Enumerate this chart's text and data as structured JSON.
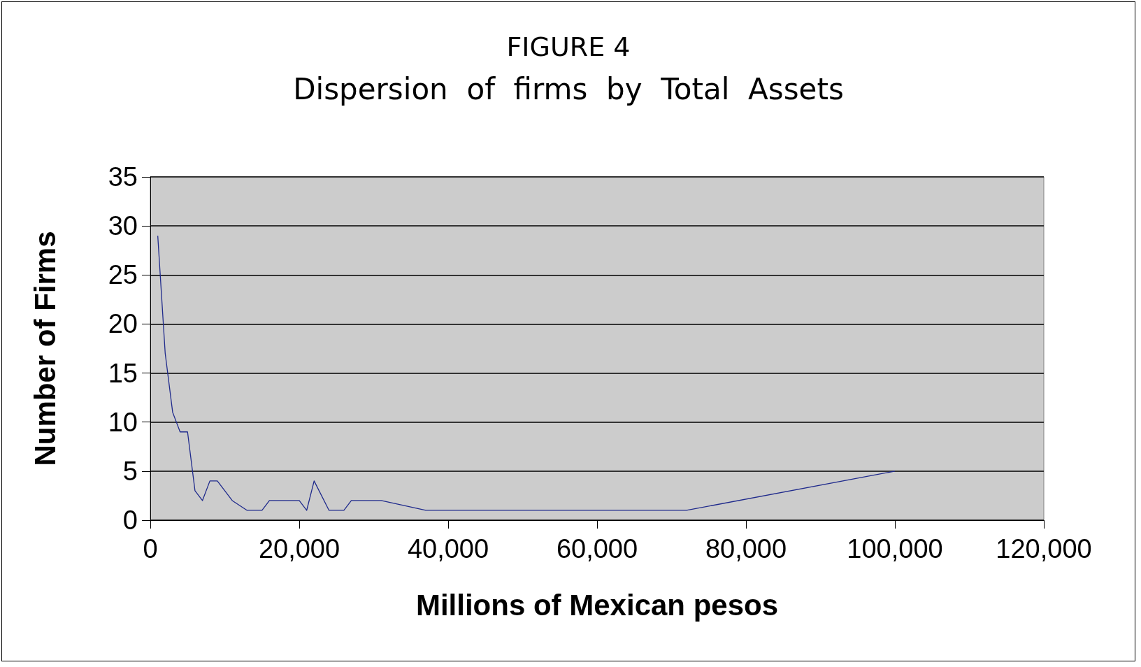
{
  "chart_data": {
    "type": "line",
    "title": "FIGURE 4",
    "subtitle": "Dispersion  of  firms  by  Total  Assets",
    "xlabel": "Millions of Mexican pesos",
    "ylabel": "Number of Firms",
    "x": [
      1000,
      2000,
      3000,
      4000,
      5000,
      6000,
      7000,
      8000,
      9000,
      11000,
      13000,
      14000,
      15000,
      16000,
      18000,
      20000,
      21000,
      22000,
      24000,
      26000,
      27000,
      31000,
      37000,
      72000,
      100000
    ],
    "series": [
      {
        "color": "#1f2a8c",
        "values": [
          29,
          17,
          11,
          9,
          9,
          3,
          2,
          4,
          4,
          2,
          1,
          1,
          1,
          2,
          2,
          2,
          1,
          4,
          1,
          1,
          2,
          2,
          1,
          1,
          5
        ]
      }
    ],
    "xlim": [
      0,
      120000
    ],
    "xticks": [
      0,
      {
        "value": 20000,
        "label": "20,000"
      },
      {
        "value": 40000,
        "label": "40,000"
      },
      {
        "value": 60000,
        "label": "60,000"
      },
      {
        "value": 80000,
        "label": "80,000"
      },
      {
        "value": 100000,
        "label": "100,000"
      },
      {
        "value": 120000,
        "label": "120,000"
      }
    ],
    "ylim": [
      0,
      35
    ],
    "yticks": [
      0,
      5,
      10,
      15,
      20,
      25,
      30,
      35
    ],
    "grid": "y",
    "marker": "none",
    "line_style": "solid"
  }
}
